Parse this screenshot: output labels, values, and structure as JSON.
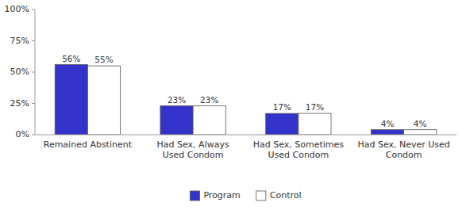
{
  "chart_data": {
    "type": "bar",
    "categories": [
      "Remained Abstinent",
      "Had Sex, Always\nUsed Condom",
      "Had Sex, Sometimes\nUsed Condom",
      "Had Sex, Never Used\nCondom"
    ],
    "series": [
      {
        "name": "Program",
        "color": "#3333CC",
        "values": [
          56,
          23,
          17,
          4
        ],
        "value_labels": [
          "56%",
          "23%",
          "17%",
          "4%"
        ]
      },
      {
        "name": "Control",
        "color": "#FFFFFF",
        "values": [
          55,
          23,
          17,
          4
        ],
        "value_labels": [
          "55%",
          "23%",
          "17%",
          "4%"
        ]
      }
    ],
    "ylim": [
      0,
      100
    ],
    "yticks": [
      {
        "value": 0,
        "label": "0%"
      },
      {
        "value": 25,
        "label": "25%"
      },
      {
        "value": 50,
        "label": "50%"
      },
      {
        "value": 75,
        "label": "75%"
      },
      {
        "value": 100,
        "label": "100%"
      }
    ],
    "grid": false,
    "legend": "bottom",
    "data_labels": true
  }
}
